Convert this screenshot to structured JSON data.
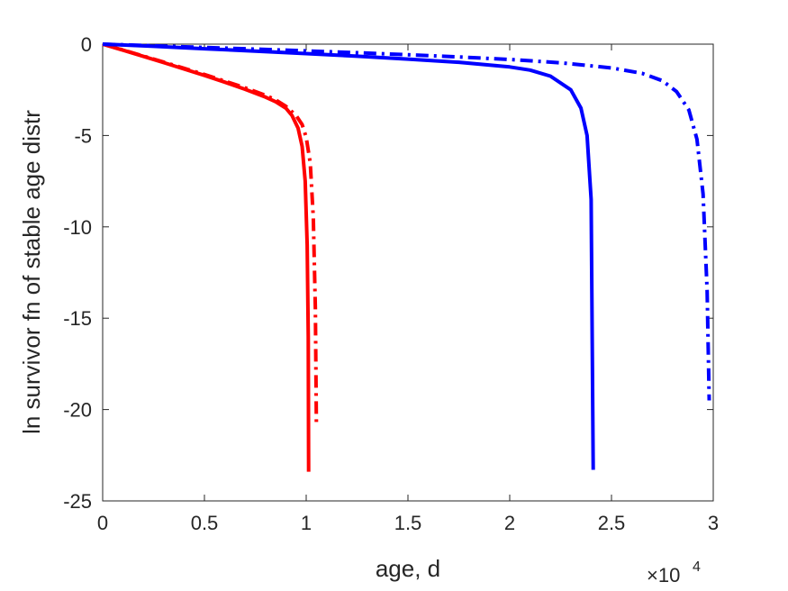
{
  "chart_data": {
    "type": "line",
    "title": "",
    "xlabel": "age, d",
    "ylabel": "ln survivor fn of stable age distr",
    "x_exponent_label": "×10",
    "x_exponent_power": "4",
    "xlim": [
      0,
      3
    ],
    "ylim": [
      -25,
      0
    ],
    "xticks": [
      "0",
      "0.5",
      "1",
      "1.5",
      "2",
      "2.5",
      "3"
    ],
    "yticks": [
      "0",
      "-5",
      "-10",
      "-15",
      "-20",
      "-25"
    ],
    "grid": false,
    "legend": "none",
    "series": [
      {
        "color": "#ff0000",
        "style": "solid",
        "x": [
          0,
          0.1,
          0.2,
          0.3,
          0.4,
          0.5,
          0.6,
          0.7,
          0.8,
          0.85,
          0.9,
          0.93,
          0.96,
          0.98,
          0.995,
          1.005,
          1.01,
          1.012
        ],
        "y": [
          0,
          -0.33,
          -0.67,
          -1.01,
          -1.36,
          -1.71,
          -2.08,
          -2.47,
          -2.9,
          -3.15,
          -3.5,
          -3.9,
          -4.6,
          -5.6,
          -7.5,
          -11,
          -16,
          -23.4
        ]
      },
      {
        "color": "#ff0000",
        "style": "dashdot",
        "x": [
          0,
          0.1,
          0.2,
          0.3,
          0.4,
          0.5,
          0.6,
          0.7,
          0.8,
          0.85,
          0.9,
          0.95,
          0.98,
          1.0,
          1.02,
          1.035,
          1.045,
          1.05
        ],
        "y": [
          0,
          -0.32,
          -0.65,
          -0.98,
          -1.32,
          -1.66,
          -2.02,
          -2.39,
          -2.8,
          -3.05,
          -3.4,
          -3.9,
          -4.4,
          -5.1,
          -6.5,
          -9.5,
          -14.5,
          -20.7
        ]
      },
      {
        "color": "#0000ff",
        "style": "solid",
        "x": [
          0,
          0.25,
          0.5,
          0.75,
          1.0,
          1.25,
          1.5,
          1.75,
          2.0,
          2.1,
          2.2,
          2.3,
          2.35,
          2.38,
          2.4,
          2.41
        ],
        "y": [
          0,
          -0.12,
          -0.25,
          -0.38,
          -0.52,
          -0.66,
          -0.82,
          -0.99,
          -1.25,
          -1.42,
          -1.75,
          -2.5,
          -3.5,
          -5.0,
          -8.5,
          -23.3
        ]
      },
      {
        "color": "#0000ff",
        "style": "dashdot",
        "x": [
          0,
          0.25,
          0.5,
          0.75,
          1.0,
          1.25,
          1.5,
          1.75,
          2.0,
          2.25,
          2.5,
          2.65,
          2.75,
          2.82,
          2.88,
          2.92,
          2.95,
          2.97,
          2.98
        ],
        "y": [
          0,
          -0.09,
          -0.18,
          -0.27,
          -0.37,
          -0.47,
          -0.58,
          -0.7,
          -0.84,
          -1.02,
          -1.3,
          -1.6,
          -2.0,
          -2.6,
          -3.6,
          -5.2,
          -8.2,
          -13.5,
          -19.5
        ]
      }
    ]
  }
}
